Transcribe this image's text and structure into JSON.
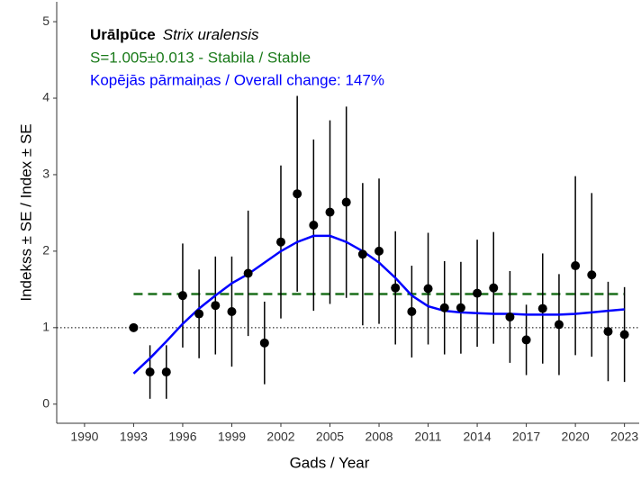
{
  "chart_data": {
    "type": "scatter",
    "title": "Urālpūce",
    "subtitle": "Strix uralensis",
    "annotations": [
      "S=1.005±0.013 -  Stabila / Stable",
      "Kopējās pārmaiņas / Overall change: 147%"
    ],
    "annotation_colors": [
      "#1a7a1a",
      "#0000ff"
    ],
    "x_label": "Gads / Year",
    "y_label": "Indekss ± SE / Index ± SE",
    "x": [
      1993,
      1994,
      1995,
      1996,
      1997,
      1998,
      1999,
      2000,
      2001,
      2002,
      2003,
      2004,
      2005,
      2006,
      2007,
      2008,
      2009,
      2010,
      2011,
      2012,
      2013,
      2014,
      2015,
      2016,
      2017,
      2018,
      2019,
      2020,
      2021,
      2022,
      2023
    ],
    "points": {
      "color": "#000000",
      "values": [
        1.0,
        0.42,
        0.42,
        1.42,
        1.18,
        1.29,
        1.21,
        1.71,
        0.8,
        2.12,
        2.75,
        2.34,
        2.51,
        2.64,
        1.96,
        2.0,
        1.52,
        1.21,
        1.51,
        1.26,
        1.26,
        1.45,
        1.52,
        1.14,
        0.84,
        1.25,
        1.04,
        1.81,
        1.69,
        0.95,
        0.91
      ],
      "errors": [
        null,
        0.35,
        0.35,
        0.68,
        0.58,
        0.64,
        0.72,
        0.82,
        0.54,
        1.0,
        1.28,
        1.12,
        1.2,
        1.25,
        0.93,
        0.95,
        0.74,
        0.6,
        0.73,
        0.61,
        0.6,
        0.7,
        0.73,
        0.6,
        0.46,
        0.72,
        0.66,
        1.17,
        1.07,
        0.65,
        0.62
      ]
    },
    "trend": {
      "color": "#0000ff",
      "values": [
        0.4,
        0.6,
        0.82,
        1.05,
        1.25,
        1.42,
        1.58,
        1.7,
        1.85,
        2.0,
        2.12,
        2.2,
        2.2,
        2.12,
        2.0,
        1.85,
        1.65,
        1.42,
        1.28,
        1.22,
        1.2,
        1.19,
        1.18,
        1.18,
        1.17,
        1.17,
        1.17,
        1.18,
        1.2,
        1.22,
        1.24
      ]
    },
    "reference_lines": [
      {
        "value": 1.44,
        "style": "dashed",
        "color": "#1a6e1a"
      },
      {
        "value": 1,
        "style": "dotted",
        "color": "#000000"
      }
    ],
    "xlim": [
      1988.3,
      2023.9
    ],
    "ylim": [
      -0.25,
      5.26
    ],
    "xticks": [
      1990,
      1993,
      1996,
      1999,
      2002,
      2005,
      2008,
      2011,
      2014,
      2017,
      2020,
      2023
    ],
    "yticks": [
      0,
      1,
      2,
      3,
      4,
      5
    ]
  }
}
